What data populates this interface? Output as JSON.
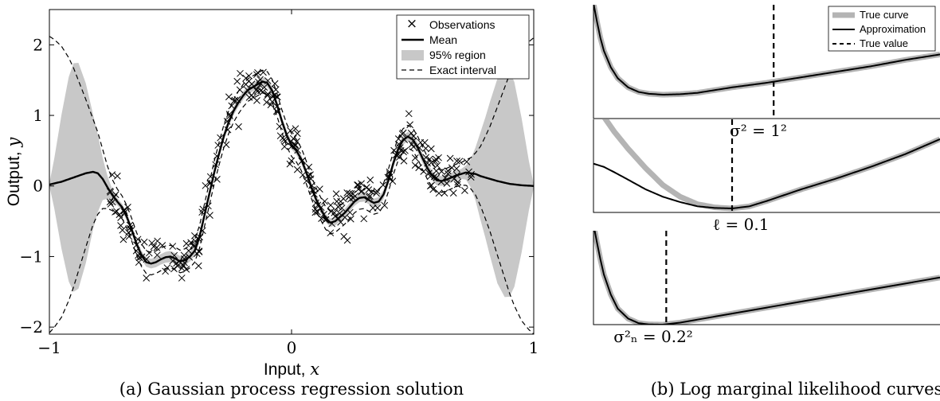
{
  "chart_data": [
    {
      "id": "gp_regression",
      "type": "scatter",
      "caption": "(a) Gaussian process regression solution",
      "xlabel": "Input, ",
      "xlabel_var": "x",
      "ylabel": "Output, ",
      "ylabel_var": "y",
      "xlim": [
        -1,
        1
      ],
      "ylim": [
        -2.1,
        2.5
      ],
      "xticks": [
        -1,
        0,
        1
      ],
      "xtick_labels": [
        "−1",
        "0",
        "1"
      ],
      "yticks": [
        -2,
        -1,
        0,
        1,
        2
      ],
      "ytick_labels": [
        "−2",
        "−1",
        "0",
        "1",
        "2"
      ],
      "grid": false,
      "legend_position": "top-right",
      "legend": [
        {
          "key": "obs",
          "label": "Observations",
          "symbol": "×"
        },
        {
          "key": "mean",
          "label": "Mean"
        },
        {
          "key": "region",
          "label": "95% region"
        },
        {
          "key": "exact",
          "label": "Exact interval"
        }
      ],
      "mean": {
        "x": [
          -1,
          -0.95,
          -0.9,
          -0.85,
          -0.82,
          -0.8,
          -0.78,
          -0.76,
          -0.74,
          -0.72,
          -0.7,
          -0.68,
          -0.66,
          -0.64,
          -0.62,
          -0.6,
          -0.58,
          -0.56,
          -0.54,
          -0.52,
          -0.5,
          -0.48,
          -0.46,
          -0.44,
          -0.42,
          -0.4,
          -0.38,
          -0.36,
          -0.34,
          -0.32,
          -0.3,
          -0.28,
          -0.26,
          -0.24,
          -0.22,
          -0.2,
          -0.18,
          -0.16,
          -0.14,
          -0.12,
          -0.1,
          -0.08,
          -0.06,
          -0.04,
          -0.02,
          0,
          0.02,
          0.04,
          0.06,
          0.08,
          0.1,
          0.12,
          0.14,
          0.16,
          0.18,
          0.2,
          0.22,
          0.24,
          0.26,
          0.28,
          0.3,
          0.32,
          0.34,
          0.36,
          0.38,
          0.4,
          0.42,
          0.44,
          0.46,
          0.48,
          0.5,
          0.52,
          0.54,
          0.56,
          0.58,
          0.6,
          0.62,
          0.64,
          0.66,
          0.68,
          0.7,
          0.72,
          0.74,
          0.76,
          0.78,
          0.8,
          0.85,
          0.9,
          0.95,
          1
        ],
        "y": [
          0.02,
          0.06,
          0.12,
          0.18,
          0.2,
          0.18,
          0.1,
          -0.02,
          -0.13,
          -0.22,
          -0.3,
          -0.44,
          -0.62,
          -0.82,
          -0.98,
          -1.08,
          -1.1,
          -1.08,
          -1.04,
          -1.01,
          -1.0,
          -1.03,
          -1.07,
          -1.05,
          -1.0,
          -0.92,
          -0.72,
          -0.42,
          -0.12,
          0.18,
          0.45,
          0.7,
          0.9,
          1.06,
          1.18,
          1.28,
          1.36,
          1.4,
          1.44,
          1.48,
          1.46,
          1.35,
          1.15,
          0.92,
          0.72,
          0.58,
          0.5,
          0.38,
          0.2,
          0.0,
          -0.18,
          -0.32,
          -0.45,
          -0.52,
          -0.5,
          -0.44,
          -0.38,
          -0.3,
          -0.22,
          -0.17,
          -0.16,
          -0.2,
          -0.24,
          -0.22,
          -0.12,
          0.08,
          0.32,
          0.52,
          0.65,
          0.7,
          0.66,
          0.55,
          0.4,
          0.26,
          0.15,
          0.08,
          0.07,
          0.09,
          0.12,
          0.15,
          0.17,
          0.19,
          0.18,
          0.17,
          0.14,
          0.12,
          0.07,
          0.03,
          0.01,
          0.0
        ]
      },
      "region_halfwidth": {
        "x": [
          -1,
          -0.98,
          -0.95,
          -0.92,
          -0.9,
          -0.88,
          -0.85,
          -0.82,
          -0.8,
          -0.78,
          -0.76,
          -0.74,
          -0.72,
          -0.7,
          -0.5,
          -0.3,
          0,
          0.3,
          0.6,
          0.7,
          0.72,
          0.74,
          0.76,
          0.78,
          0.8,
          0.82,
          0.85,
          0.88,
          0.9,
          0.92,
          0.95,
          0.98,
          1
        ],
        "y": [
          0.02,
          0.35,
          0.95,
          1.45,
          1.62,
          1.6,
          1.28,
          0.82,
          0.55,
          0.3,
          0.16,
          0.08,
          0.05,
          0.05,
          0.08,
          0.06,
          0.06,
          0.06,
          0.07,
          0.07,
          0.1,
          0.2,
          0.38,
          0.62,
          0.85,
          1.1,
          1.45,
          1.62,
          1.6,
          1.45,
          0.95,
          0.35,
          0.02
        ]
      },
      "exact_halfwidth": {
        "x": [
          -1,
          -0.98,
          -0.95,
          -0.92,
          -0.9,
          -0.88,
          -0.85,
          -0.82,
          -0.8,
          -0.78,
          -0.76,
          -0.74,
          -0.72,
          -0.7,
          0.7,
          0.72,
          0.74,
          0.76,
          0.78,
          0.8,
          0.82,
          0.85,
          0.88,
          0.9,
          0.92,
          0.95,
          0.98,
          1
        ],
        "y": [
          2.1,
          2.04,
          1.92,
          1.72,
          1.55,
          1.35,
          1.05,
          0.75,
          0.58,
          0.42,
          0.3,
          0.22,
          0.18,
          0.16,
          0.16,
          0.18,
          0.22,
          0.3,
          0.42,
          0.58,
          0.75,
          1.05,
          1.35,
          1.55,
          1.72,
          1.92,
          2.04,
          2.1
        ]
      }
    },
    {
      "id": "lml_sigma",
      "type": "line",
      "label": "σ² = 1²",
      "legend_position": "top-right",
      "legend": [
        {
          "key": "true_curve",
          "label": "True curve"
        },
        {
          "key": "approx",
          "label": "Approximation"
        },
        {
          "key": "true_value",
          "label": "True value"
        }
      ],
      "true_value_x": 0.52,
      "true_curve": {
        "x": [
          0,
          0.01,
          0.02,
          0.03,
          0.05,
          0.07,
          0.1,
          0.13,
          0.16,
          0.2,
          0.25,
          0.3,
          0.35,
          0.4,
          0.5,
          0.6,
          0.7,
          0.8,
          0.9,
          1
        ],
        "y": [
          1.0,
          0.8,
          0.62,
          0.48,
          0.3,
          0.18,
          0.08,
          0.03,
          0.01,
          0.0,
          0.005,
          0.02,
          0.05,
          0.08,
          0.13,
          0.19,
          0.25,
          0.31,
          0.38,
          0.44
        ]
      },
      "approximation": {
        "x": [
          0,
          0.01,
          0.02,
          0.03,
          0.05,
          0.07,
          0.1,
          0.13,
          0.16,
          0.2,
          0.25,
          0.3,
          0.35,
          0.4,
          0.5,
          0.6,
          0.7,
          0.8,
          0.9,
          1
        ],
        "y": [
          1.0,
          0.8,
          0.62,
          0.48,
          0.3,
          0.18,
          0.08,
          0.03,
          0.01,
          0.0,
          0.005,
          0.02,
          0.05,
          0.08,
          0.13,
          0.19,
          0.25,
          0.31,
          0.38,
          0.44
        ]
      }
    },
    {
      "id": "lml_ell",
      "type": "line",
      "label": "ℓ = 0.1",
      "true_value_x": 0.4,
      "true_curve": {
        "x": [
          0,
          0.03,
          0.06,
          0.1,
          0.15,
          0.2,
          0.25,
          0.3,
          0.35,
          0.4,
          0.45,
          0.5,
          0.6,
          0.7,
          0.8,
          0.9,
          1
        ],
        "y": [
          1.0,
          0.86,
          0.72,
          0.56,
          0.38,
          0.22,
          0.11,
          0.04,
          0.01,
          0.0,
          0.02,
          0.07,
          0.18,
          0.28,
          0.39,
          0.51,
          0.65
        ]
      },
      "approximation": {
        "x": [
          0,
          0.03,
          0.06,
          0.1,
          0.15,
          0.2,
          0.25,
          0.3,
          0.35,
          0.4,
          0.45,
          0.5,
          0.6,
          0.7,
          0.8,
          0.9,
          1
        ],
        "y": [
          0.42,
          0.39,
          0.34,
          0.27,
          0.18,
          0.11,
          0.06,
          0.02,
          0.005,
          0.0,
          0.02,
          0.07,
          0.18,
          0.28,
          0.39,
          0.51,
          0.65
        ]
      }
    },
    {
      "id": "lml_noise",
      "type": "line",
      "label": "σ²ₙ = 0.2²",
      "true_value_x": 0.21,
      "true_curve": {
        "x": [
          0,
          0.01,
          0.02,
          0.03,
          0.05,
          0.07,
          0.1,
          0.13,
          0.16,
          0.2,
          0.25,
          0.3,
          0.4,
          0.5,
          0.6,
          0.7,
          0.8,
          0.9,
          1
        ],
        "y": [
          1.0,
          0.82,
          0.65,
          0.5,
          0.3,
          0.16,
          0.06,
          0.015,
          0.002,
          0.0,
          0.02,
          0.05,
          0.11,
          0.17,
          0.23,
          0.29,
          0.35,
          0.41,
          0.47
        ]
      },
      "approximation": {
        "x": [
          0,
          0.01,
          0.02,
          0.03,
          0.05,
          0.07,
          0.1,
          0.13,
          0.16,
          0.2,
          0.25,
          0.3,
          0.4,
          0.5,
          0.6,
          0.7,
          0.8,
          0.9,
          1
        ],
        "y": [
          1.0,
          0.82,
          0.65,
          0.5,
          0.3,
          0.16,
          0.06,
          0.015,
          0.002,
          0.0,
          0.02,
          0.05,
          0.11,
          0.17,
          0.23,
          0.29,
          0.35,
          0.41,
          0.47
        ]
      }
    }
  ],
  "captions": {
    "right": "(b) Log marginal likelihood curves"
  },
  "colors": {
    "region": "#c8c8c8",
    "true_curve": "#b4b4b4",
    "line": "#000000"
  }
}
